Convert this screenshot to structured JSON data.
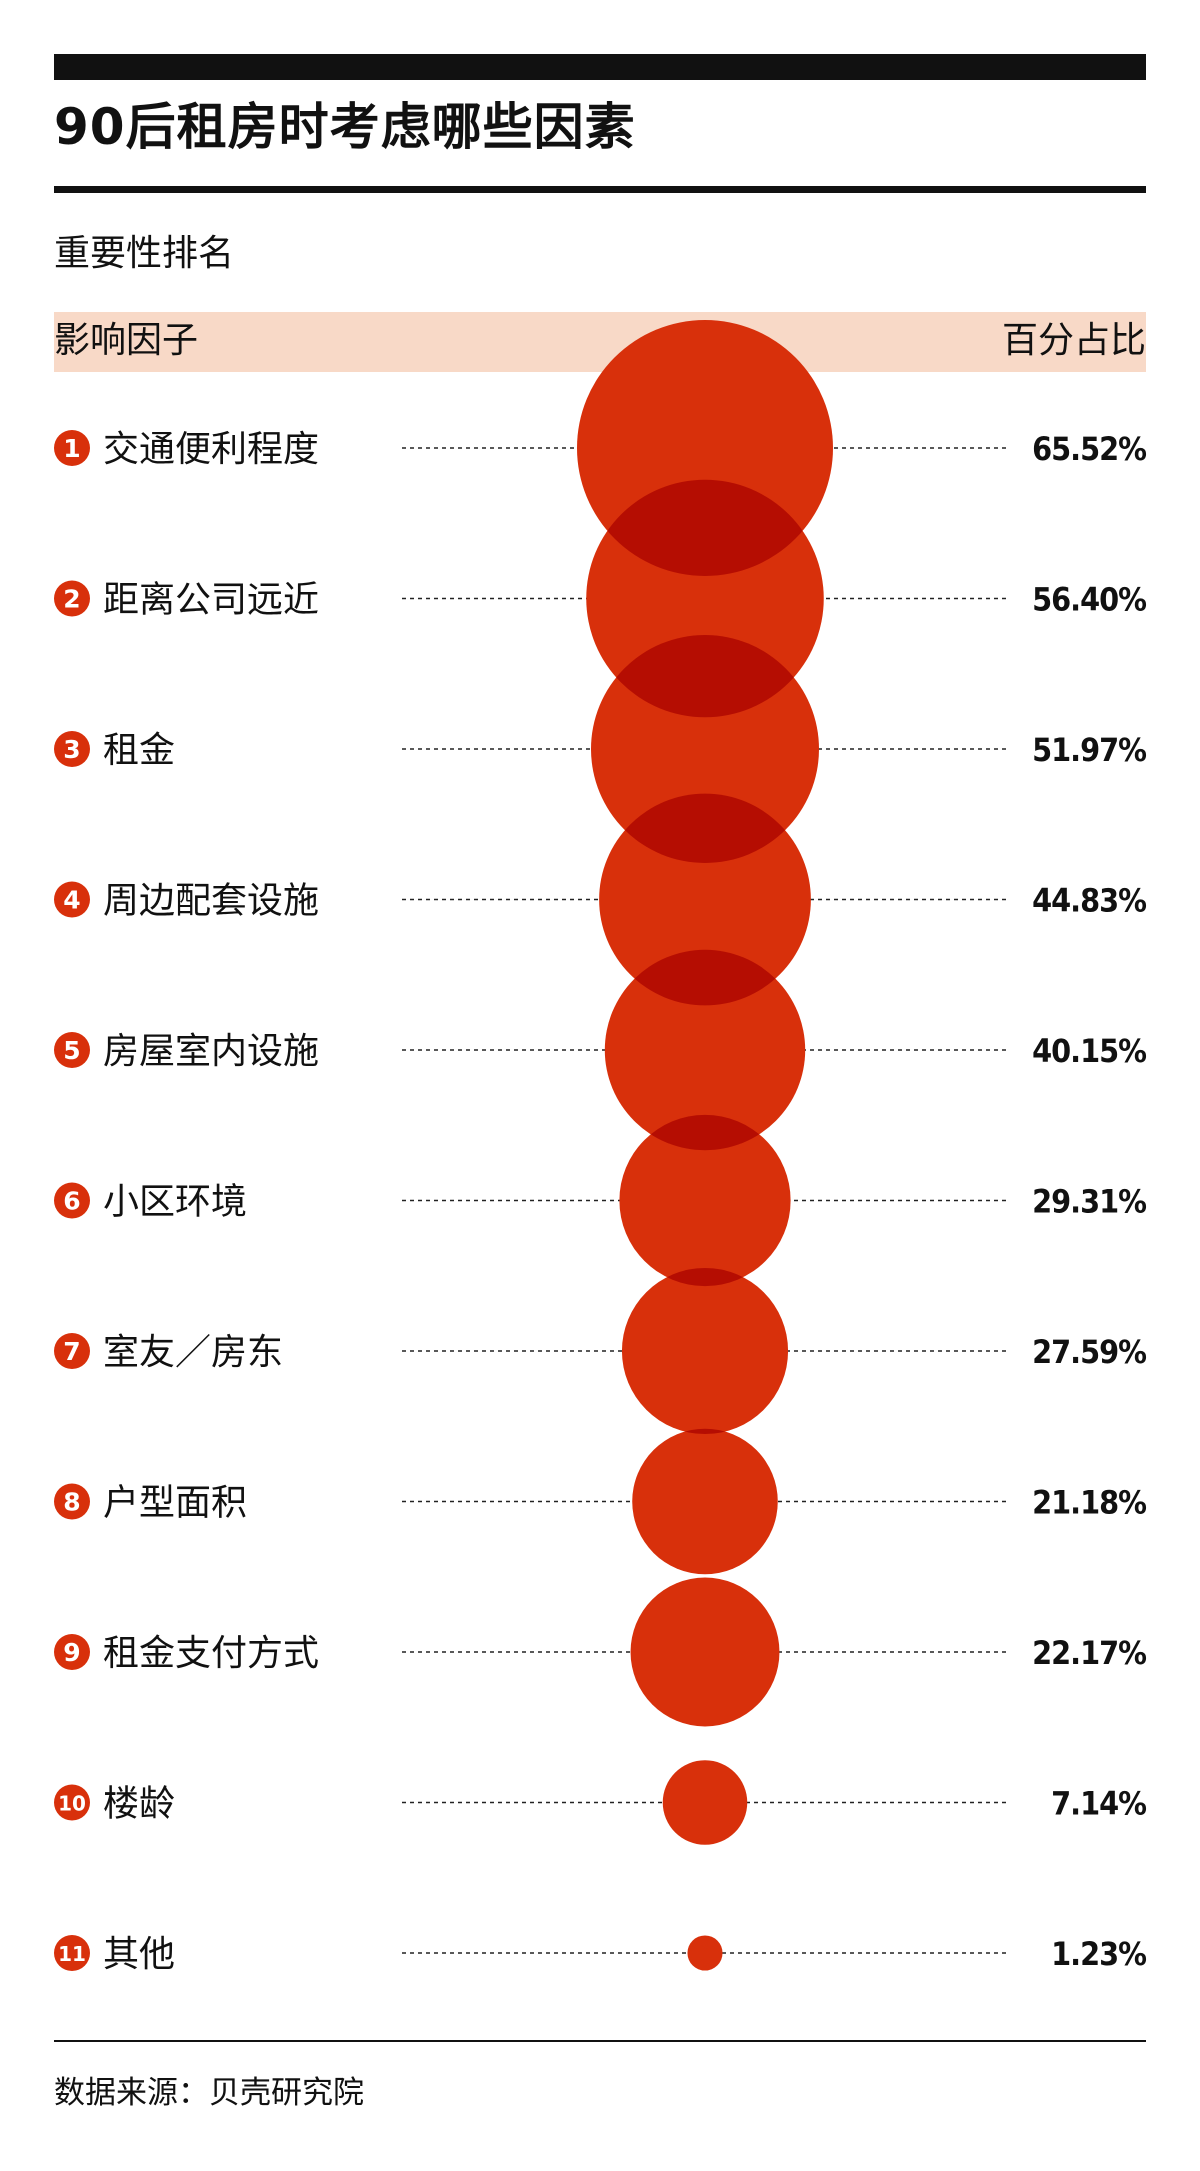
{
  "title": "90后租房时考虑哪些因素",
  "subtitle": "重要性排名",
  "header": {
    "left": "影响因子",
    "right": "百分占比"
  },
  "source": "数据来源：贝壳研究院",
  "colors": {
    "bubble": "#d8300b",
    "bubble_overlap": "#b50d02",
    "header_band": "#f8d9c7",
    "text": "#111111",
    "badge_text": "#ffffff"
  },
  "chart_data": {
    "type": "bubble",
    "title": "90后租房时考虑哪些因素",
    "subtitle": "重要性排名",
    "xlabel": "影响因子",
    "ylabel": "百分占比",
    "unit": "%",
    "categories": [
      "交通便利程度",
      "距离公司远近",
      "租金",
      "周边配套设施",
      "房屋室内设施",
      "小区环境",
      "室友／房东",
      "户型面积",
      "租金支付方式",
      "楼龄",
      "其他"
    ],
    "ranks": [
      "1",
      "2",
      "3",
      "4",
      "5",
      "6",
      "7",
      "8",
      "9",
      "10",
      "11"
    ],
    "values": [
      65.52,
      56.4,
      51.97,
      44.83,
      40.15,
      29.31,
      27.59,
      21.18,
      22.17,
      7.14,
      1.23
    ],
    "value_labels": [
      "65.52%",
      "56.40%",
      "51.97%",
      "44.83%",
      "40.15%",
      "29.31%",
      "27.59%",
      "21.18%",
      "22.17%",
      "7.14%",
      "1.23%"
    ],
    "grid": false,
    "legend": "none"
  }
}
